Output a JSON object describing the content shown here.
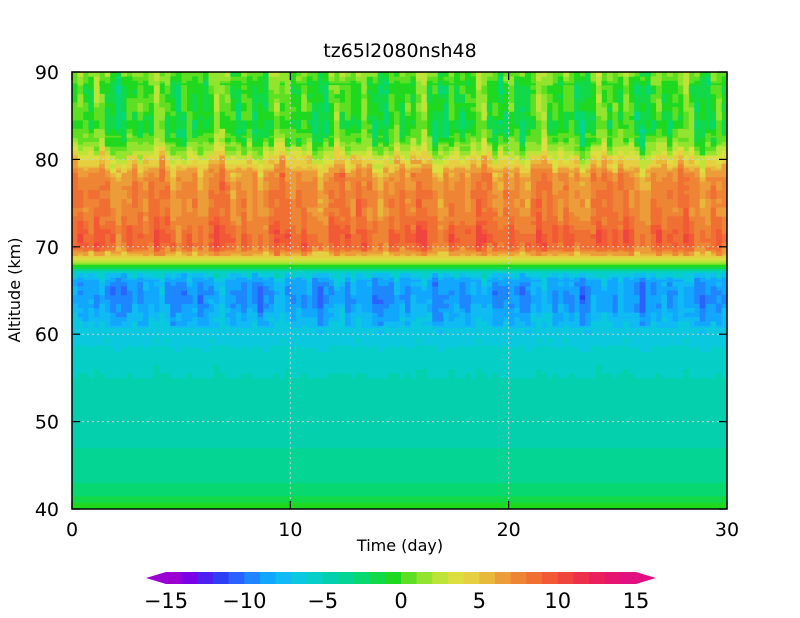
{
  "chart_data": {
    "type": "heatmap",
    "title": "tz65l2080nsh48",
    "xlabel": "Time (day)",
    "ylabel": "Altitude (km)",
    "xlim": [
      0,
      30
    ],
    "ylim": [
      40,
      90
    ],
    "x_ticks": [
      0,
      10,
      20,
      30
    ],
    "y_ticks": [
      40,
      50,
      60,
      70,
      80,
      90
    ],
    "grid": "dotted, at major ticks",
    "colorbar": {
      "orientation": "horizontal",
      "position": "bottom",
      "extend": "both",
      "levels": [
        -15,
        -14,
        -13,
        -12,
        -11,
        -10,
        -9,
        -8,
        -7,
        -6,
        -5,
        -4,
        -3,
        -2,
        -1,
        0,
        1,
        2,
        3,
        4,
        5,
        6,
        7,
        8,
        9,
        10,
        11,
        12,
        13,
        14,
        15
      ],
      "tick_labels": [
        "−15",
        "−10",
        "−5",
        "0",
        "5",
        "10",
        "15"
      ],
      "tick_values": [
        -15,
        -10,
        -5,
        0,
        5,
        10,
        15
      ],
      "colors": [
        "#9b00d3",
        "#7a00e6",
        "#4d1ff0",
        "#2e3ef5",
        "#2a62ff",
        "#1e86ff",
        "#12a7ff",
        "#0fbbf2",
        "#0ac8dd",
        "#05cfc6",
        "#04d0ad",
        "#04d592",
        "#07d870",
        "#11d948",
        "#1ed91f",
        "#5fdf22",
        "#93e42e",
        "#bee43a",
        "#dbe040",
        "#e6cf40",
        "#e9b93c",
        "#ec9c38",
        "#ee8535",
        "#f06f33",
        "#f15a35",
        "#f0453e",
        "#ee2f4a",
        "#eb1f5b",
        "#e6156f",
        "#e21081"
      ]
    },
    "profile": {
      "altitude_km": [
        40,
        41,
        42,
        44,
        47,
        50,
        55,
        58,
        60,
        62,
        64,
        66,
        67,
        67.7,
        68.3,
        69,
        70,
        71,
        72,
        74,
        76,
        78,
        79,
        80,
        81,
        82,
        84,
        86,
        88,
        90
      ],
      "value": [
        0,
        -1.5,
        -2.5,
        -3.5,
        -4,
        -4.5,
        -5,
        -5.7,
        -6.5,
        -8,
        -9,
        -8.5,
        -6,
        -1,
        2,
        5,
        8.5,
        9,
        8.5,
        7.5,
        7.5,
        7,
        5.5,
        4,
        2,
        0.5,
        -1,
        0,
        -0.5,
        1
      ]
    }
  }
}
